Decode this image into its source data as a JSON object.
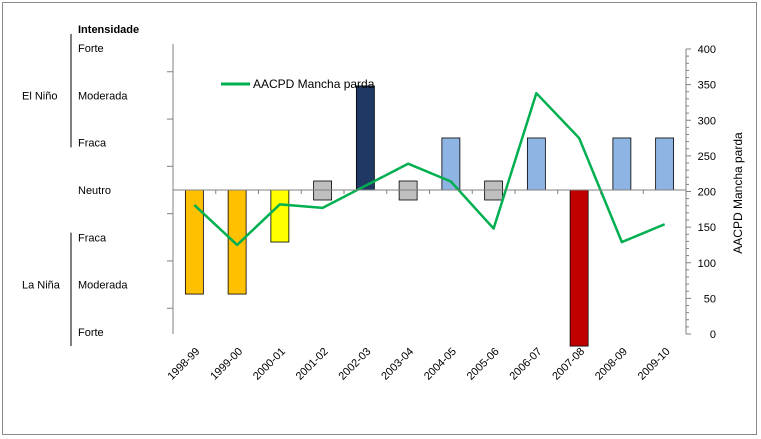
{
  "chart_data": {
    "type": "bar",
    "categories": [
      "1998-99",
      "1999-00",
      "2000-01",
      "2001-02",
      "2002-03",
      "2003-04",
      "2004-05",
      "2005-06",
      "2006-07",
      "2007-08",
      "2008-09",
      "2009-10"
    ],
    "left_axis": {
      "title": "Intensidade",
      "ticks": [
        {
          "label": "Forte",
          "level": 3
        },
        {
          "label": "Moderada",
          "level": 2
        },
        {
          "label": "Fraca",
          "level": 1
        },
        {
          "label": "Neutro",
          "level": 0
        },
        {
          "label": "Fraca",
          "level": -1
        },
        {
          "label": "Moderada",
          "level": -2
        },
        {
          "label": "Forte",
          "level": -3
        }
      ],
      "groups": [
        {
          "label": "El Niño",
          "from": 1,
          "to": 3
        },
        {
          "label": "La Niña",
          "from": -3,
          "to": -1
        }
      ]
    },
    "right_axis": {
      "title": "AACPD Mancha parda",
      "ylim": [
        0,
        400
      ],
      "ticks": [
        0,
        50,
        100,
        150,
        200,
        250,
        300,
        350,
        400
      ]
    },
    "bars": [
      {
        "category": "1998-99",
        "value": -2.2,
        "color": "#ffc000"
      },
      {
        "category": "1999-00",
        "value": -2.2,
        "color": "#ffc000"
      },
      {
        "category": "2000-01",
        "value": -1.1,
        "color": "#ffff00"
      },
      {
        "category": "2001-02",
        "value": 0.0,
        "color": "#bfbfbf"
      },
      {
        "category": "2002-03",
        "value": 2.2,
        "color": "#1f3864"
      },
      {
        "category": "2003-04",
        "value": 0.0,
        "color": "#bfbfbf"
      },
      {
        "category": "2004-05",
        "value": 1.1,
        "color": "#8eb4e3"
      },
      {
        "category": "2005-06",
        "value": 0.0,
        "color": "#bfbfbf"
      },
      {
        "category": "2006-07",
        "value": 1.1,
        "color": "#8eb4e3"
      },
      {
        "category": "2007-08",
        "value": -3.3,
        "color": "#c00000"
      },
      {
        "category": "2008-09",
        "value": 1.1,
        "color": "#8eb4e3"
      },
      {
        "category": "2009-10",
        "value": 1.1,
        "color": "#8eb4e3"
      }
    ],
    "series": [
      {
        "name": "AACPD Mancha parda",
        "color": "#00b050",
        "axis": "right",
        "values": [
          181,
          125,
          182,
          177,
          208,
          239,
          214,
          148,
          338,
          275,
          129,
          154
        ]
      }
    ],
    "legend": {
      "position": "top-left",
      "label": "AACPD Mancha parda"
    }
  }
}
